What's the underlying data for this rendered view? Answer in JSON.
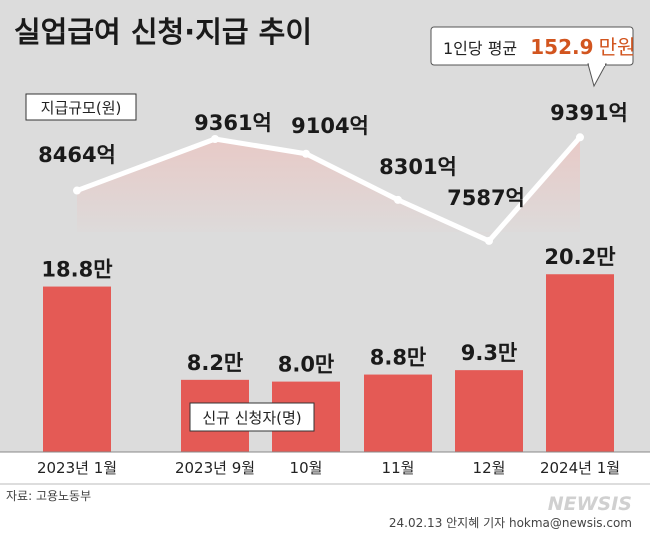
{
  "title": "실업급여 신청·지급 추이",
  "callout": {
    "prefix": "1인당 평균",
    "value": "152.9",
    "unit": "만원"
  },
  "source": "자료: 고용노동부",
  "credit": "24.02.13 안지혜 기자 hokma@newsis.com",
  "watermark": "NEWSIS",
  "colors": {
    "bar": "#e45a55",
    "band": "#ecd8d6",
    "background": "#dcdcdc",
    "accent": "#d2551f"
  },
  "chart_data": {
    "type": "bar+line",
    "categories": [
      "2023년 1월",
      "2023년 9월",
      "10월",
      "11월",
      "12월",
      "2024년 1월"
    ],
    "bars": {
      "name": "신규 신청자(명)",
      "values": [
        18.8,
        8.2,
        8.0,
        8.8,
        9.3,
        20.2
      ],
      "labels": [
        "18.8만",
        "8.2만",
        "8.0만",
        "8.8만",
        "9.3만",
        "20.2만"
      ]
    },
    "line": {
      "name": "지급규모(원)",
      "values": [
        8464,
        9361,
        9104,
        8301,
        7587,
        9391
      ],
      "labels": [
        "8464억",
        "9361억",
        "9104억",
        "8301억",
        "7587억",
        "9391억"
      ]
    }
  }
}
